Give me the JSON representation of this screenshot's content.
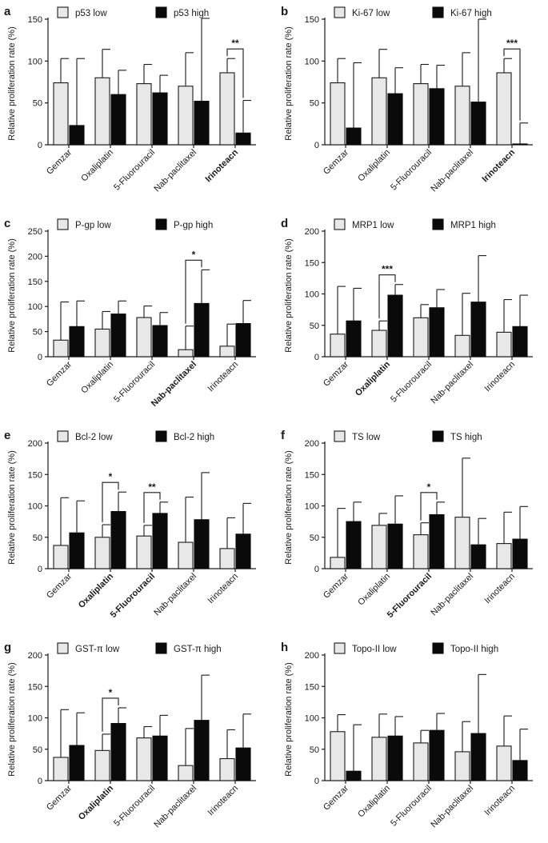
{
  "chart_data": [
    {
      "panel": "a",
      "type": "bar",
      "ylabel": "Relative proliferation rate (%)",
      "ylim": [
        0,
        150
      ],
      "yticks": [
        0,
        50,
        100,
        150
      ],
      "categories": [
        "Gemzar",
        "Oxaliplatin",
        "5-Fluorouracil",
        "Nab-paclitaxel",
        "Irinoteacn"
      ],
      "bold_categories": [
        "Irinoteacn"
      ],
      "series": [
        {
          "name": "p53 low",
          "values": [
            74,
            80,
            73,
            70,
            86
          ],
          "errors": [
            29,
            34,
            23,
            40,
            17
          ]
        },
        {
          "name": "p53 high",
          "values": [
            23,
            60,
            62,
            52,
            14
          ],
          "errors": [
            80,
            29,
            21,
            99,
            39
          ]
        }
      ],
      "annotations": [
        {
          "category": "Irinoteacn",
          "label": "**"
        }
      ]
    },
    {
      "panel": "b",
      "type": "bar",
      "ylabel": "Relative proliferation rate (%)",
      "ylim": [
        0,
        150
      ],
      "yticks": [
        0,
        50,
        100,
        150
      ],
      "categories": [
        "Gemzar",
        "Oxaliplatin",
        "5-Fluorouracil",
        "Nab-paclitaxel",
        "Irinoteacn"
      ],
      "bold_categories": [
        "Irinoteacn"
      ],
      "series": [
        {
          "name": "Ki-67 low",
          "values": [
            74,
            80,
            73,
            70,
            86
          ],
          "errors": [
            29,
            34,
            23,
            40,
            17
          ]
        },
        {
          "name": "Ki-67 high",
          "values": [
            20,
            61,
            67,
            51,
            1
          ],
          "errors": [
            78,
            31,
            28,
            99,
            25
          ]
        }
      ],
      "annotations": [
        {
          "category": "Irinoteacn",
          "label": "***"
        }
      ]
    },
    {
      "panel": "c",
      "type": "bar",
      "ylabel": "Relative proliferation rate (%)",
      "ylim": [
        0,
        250
      ],
      "yticks": [
        0,
        50,
        100,
        150,
        200,
        250
      ],
      "categories": [
        "Gemzar",
        "Oxaliplatin",
        "5-Fluorouracil",
        "Nab-paclitaxel",
        "Irinoteacn"
      ],
      "bold_categories": [
        "Nab-paclitaxel"
      ],
      "series": [
        {
          "name": "P-gp low",
          "values": [
            33,
            55,
            78,
            14,
            21
          ],
          "errors": [
            76,
            35,
            23,
            47,
            44
          ]
        },
        {
          "name": "P-gp high",
          "values": [
            60,
            85,
            62,
            106,
            66
          ],
          "errors": [
            51,
            26,
            26,
            67,
            46
          ]
        }
      ],
      "annotations": [
        {
          "category": "Nab-paclitaxel",
          "label": "*"
        }
      ]
    },
    {
      "panel": "d",
      "type": "bar",
      "ylabel": "Relative proliferation rate (%)",
      "ylim": [
        0,
        200
      ],
      "yticks": [
        0,
        50,
        100,
        150,
        200
      ],
      "categories": [
        "Gemzar",
        "Oxaliplatin",
        "5-Fluorouracil",
        "Nab-paclitaxel",
        "Irinoteacn"
      ],
      "bold_categories": [
        "Oxaliplatin"
      ],
      "series": [
        {
          "name": "MRP1 low",
          "values": [
            36,
            42,
            62,
            34,
            39
          ],
          "errors": [
            76,
            15,
            21,
            67,
            52
          ]
        },
        {
          "name": "MRP1 high",
          "values": [
            57,
            98,
            78,
            87,
            48
          ],
          "errors": [
            52,
            17,
            29,
            74,
            50
          ]
        }
      ],
      "annotations": [
        {
          "category": "Oxaliplatin",
          "label": "***"
        }
      ]
    },
    {
      "panel": "e",
      "type": "bar",
      "ylabel": "Relative proliferation rate (%)",
      "ylim": [
        0,
        200
      ],
      "yticks": [
        0,
        50,
        100,
        150,
        200
      ],
      "categories": [
        "Gemzar",
        "Oxaliplatin",
        "5-Fluorouracil",
        "Nab-paclitaxel",
        "Irinoteacn"
      ],
      "bold_categories": [
        "Oxaliplatin",
        "5-Fluorouracil"
      ],
      "series": [
        {
          "name": "Bcl-2 low",
          "values": [
            37,
            50,
            52,
            42,
            32
          ],
          "errors": [
            76,
            20,
            17,
            72,
            49
          ]
        },
        {
          "name": "Bcl-2 high",
          "values": [
            57,
            91,
            88,
            78,
            55
          ],
          "errors": [
            51,
            31,
            18,
            75,
            49
          ]
        }
      ],
      "annotations": [
        {
          "category": "Oxaliplatin",
          "label": "*"
        },
        {
          "category": "5-Fluorouracil",
          "label": "**"
        }
      ]
    },
    {
      "panel": "f",
      "type": "bar",
      "ylabel": "Relative proliferation rate (%)",
      "ylim": [
        0,
        200
      ],
      "yticks": [
        0,
        50,
        100,
        150,
        200
      ],
      "categories": [
        "Gemzar",
        "Oxaliplatin",
        "5-Fluorouracil",
        "Nab-paclitaxel",
        "Irinoteacn"
      ],
      "bold_categories": [
        "5-Fluorouracil"
      ],
      "series": [
        {
          "name": "TS low",
          "values": [
            18,
            69,
            54,
            82,
            40
          ],
          "errors": [
            78,
            19,
            19,
            94,
            50
          ]
        },
        {
          "name": "TS high",
          "values": [
            75,
            71,
            86,
            38,
            47
          ],
          "errors": [
            31,
            45,
            20,
            42,
            52
          ]
        }
      ],
      "annotations": [
        {
          "category": "5-Fluorouracil",
          "label": "*"
        }
      ]
    },
    {
      "panel": "g",
      "type": "bar",
      "ylabel": "Relative proliferation rate (%)",
      "ylim": [
        0,
        200
      ],
      "yticks": [
        0,
        50,
        100,
        150,
        200
      ],
      "categories": [
        "Gemzar",
        "Oxaliplatin",
        "5-Fluorouracil",
        "Nab-paclitaxel",
        "Irinoteacn"
      ],
      "bold_categories": [
        "Oxaliplatin"
      ],
      "series": [
        {
          "name": "GST-π low",
          "values": [
            37,
            48,
            68,
            24,
            35
          ],
          "errors": [
            76,
            26,
            18,
            59,
            46
          ]
        },
        {
          "name": "GST-π high",
          "values": [
            56,
            91,
            71,
            96,
            52
          ],
          "errors": [
            52,
            25,
            33,
            72,
            54
          ]
        }
      ],
      "annotations": [
        {
          "category": "Oxaliplatin",
          "label": "*"
        }
      ]
    },
    {
      "panel": "h",
      "type": "bar",
      "ylabel": "Relative proliferation rate (%)",
      "ylim": [
        0,
        200
      ],
      "yticks": [
        0,
        50,
        100,
        150,
        200
      ],
      "categories": [
        "Gemzar",
        "Oxaliplatin",
        "5-Fluorouracil",
        "Nab-paclitaxel",
        "Irinoteacn"
      ],
      "bold_categories": [],
      "series": [
        {
          "name": "Topo-II low",
          "values": [
            78,
            69,
            60,
            46,
            55
          ],
          "errors": [
            27,
            37,
            20,
            48,
            48
          ]
        },
        {
          "name": "Topo-II high",
          "values": [
            15,
            71,
            80,
            75,
            32
          ],
          "errors": [
            74,
            31,
            27,
            94,
            50
          ]
        }
      ],
      "annotations": []
    }
  ]
}
